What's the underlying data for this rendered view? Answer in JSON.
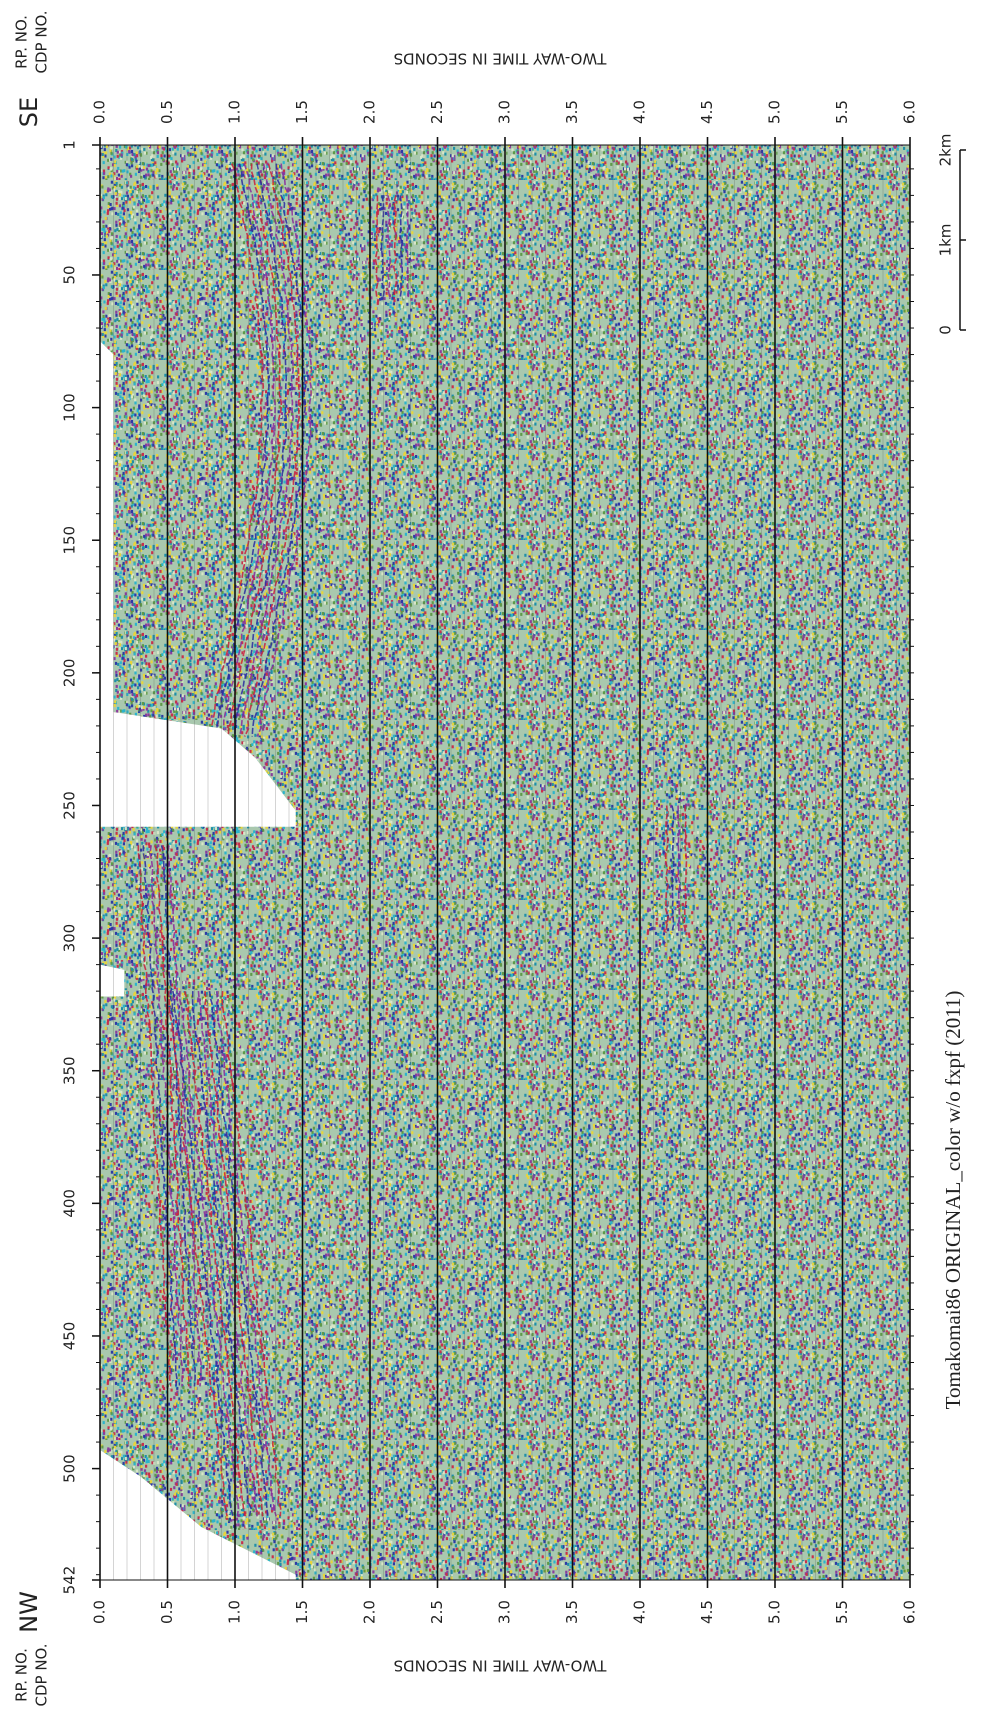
{
  "header": {
    "rp_label": "RP. NO.",
    "cdp_label": "CDP NO.",
    "direction_top": "SE",
    "direction_bottom": "NW",
    "axis_title": "TWO-WAY TIME IN SECONDS"
  },
  "time_axis": {
    "ticks": [
      {
        "value": 0,
        "label": "0.0"
      },
      0.5,
      {
        "value": 1,
        "label": "1.0"
      },
      1.5,
      {
        "value": 2,
        "label": "2.0"
      },
      2.5,
      {
        "value": 3,
        "label": "3.0"
      },
      3.5,
      {
        "value": 4,
        "label": "4.0"
      },
      4.5,
      {
        "value": 5,
        "label": "5.0"
      },
      5.5,
      {
        "value": 6,
        "label": "6.0"
      }
    ]
  },
  "cdp_axis": {
    "ticks": [
      1,
      50,
      100,
      150,
      200,
      250,
      300,
      350,
      400,
      450,
      500,
      542
    ]
  },
  "scale_bar": {
    "labels": [
      "0",
      "1km",
      "2km"
    ]
  },
  "caption": "Tomakomai86 ORIGINAL_color   w/o fxpf (2011)"
}
